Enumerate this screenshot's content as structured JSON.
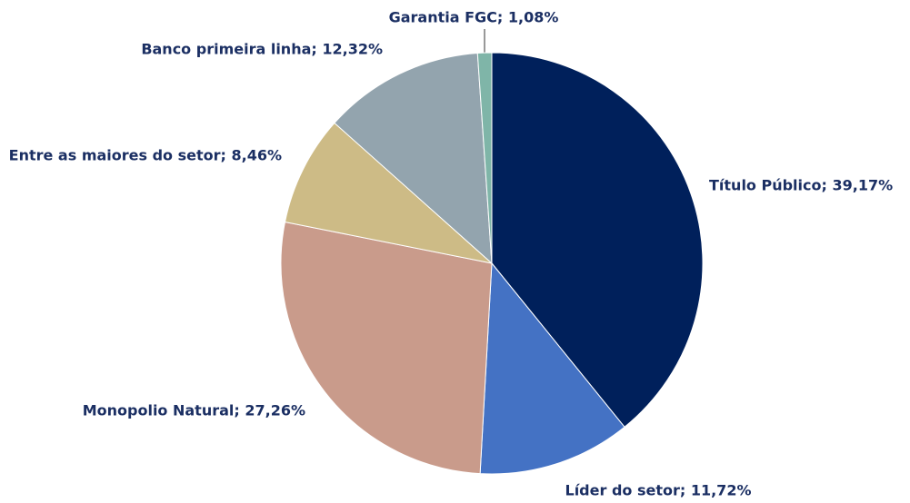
{
  "chart_data": {
    "type": "pie",
    "labels": [
      "Título Público; 39,17%",
      "Líder do setor; 11,72%",
      "Monopolio Natural; 27,26%",
      "Entre as maiores do setor; 8,46%",
      "Banco primeira linha; 12,32%",
      "Garantia FGC; 1,08%"
    ],
    "values": [
      39.17,
      11.72,
      27.26,
      8.46,
      12.32,
      1.08
    ],
    "colors": [
      "#00205b",
      "#4472c4",
      "#c99b8b",
      "#cdbb86",
      "#93a4ae",
      "#7fb5a8"
    ]
  }
}
